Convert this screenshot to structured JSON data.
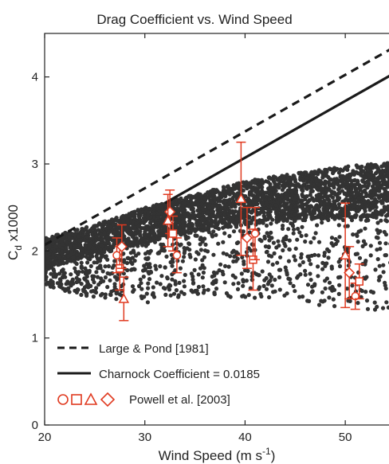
{
  "chart_data": {
    "type": "scatter",
    "title": "Drag Coefficient vs. Wind Speed",
    "xlabel": "Wind Speed (m s",
    "xlabel_sup": "-1",
    "xlabel_end": ")",
    "ylabel_main": "C",
    "ylabel_sub": "d",
    "ylabel_rest": " x1000",
    "xlim": [
      20,
      55
    ],
    "ylim": [
      0,
      4.5
    ],
    "x_ticks": [
      20,
      30,
      40,
      50
    ],
    "y_ticks": [
      0,
      1,
      2,
      3,
      4
    ],
    "grid": false,
    "legend_position": "bottom-left",
    "colors": {
      "scatter": "#333333",
      "observations": "#e03a20",
      "lines": "#1a1a1a"
    },
    "lines": [
      {
        "name": "Large & Pond [1981]",
        "style": "dashed",
        "x": [
          20,
          55
        ],
        "y": [
          2.07,
          4.35
        ]
      },
      {
        "name": "Charnock Coefficient = 0.0185",
        "style": "solid",
        "x": [
          32,
          55
        ],
        "y": [
          2.55,
          4.05
        ]
      }
    ],
    "scatter_cloud": {
      "description_points": "dense cloud of modeled drag coefficients",
      "x": [
        20,
        25,
        30,
        35,
        40,
        45,
        50,
        55
      ],
      "upper": [
        2.15,
        2.3,
        2.5,
        2.65,
        2.8,
        2.9,
        2.97,
        3.03
      ],
      "lower": [
        1.8,
        1.95,
        2.1,
        2.22,
        2.3,
        2.35,
        2.38,
        2.4
      ],
      "scatter_low": [
        1.6,
        1.45,
        1.4,
        1.5,
        1.45,
        1.4,
        1.35,
        1.3
      ]
    },
    "observations": {
      "name": "Powell et al. [2003]",
      "markers": [
        "circle",
        "square",
        "triangle",
        "diamond"
      ],
      "points": [
        {
          "x": 27.2,
          "y": 1.95,
          "marker": "circle",
          "err": 0.2
        },
        {
          "x": 27.5,
          "y": 1.8,
          "marker": "square",
          "err": 0.25
        },
        {
          "x": 27.9,
          "y": 1.45,
          "marker": "triangle",
          "err": 0.25
        },
        {
          "x": 27.7,
          "y": 2.05,
          "marker": "diamond",
          "err": 0.25
        },
        {
          "x": 32.5,
          "y": 2.45,
          "marker": "diamond",
          "err": 0.25
        },
        {
          "x": 32.8,
          "y": 2.2,
          "marker": "square",
          "err": 0.2
        },
        {
          "x": 33.2,
          "y": 1.95,
          "marker": "circle",
          "err": 0.2
        },
        {
          "x": 32.3,
          "y": 2.35,
          "marker": "triangle",
          "err": 0.3
        },
        {
          "x": 39.6,
          "y": 2.6,
          "marker": "triangle",
          "err": 0.65
        },
        {
          "x": 40.2,
          "y": 2.15,
          "marker": "diamond",
          "err": 0.35
        },
        {
          "x": 40.8,
          "y": 1.9,
          "marker": "square",
          "err": 0.35
        },
        {
          "x": 41.0,
          "y": 2.2,
          "marker": "circle",
          "err": 0.3
        },
        {
          "x": 50.0,
          "y": 1.95,
          "marker": "triangle",
          "err": 0.6
        },
        {
          "x": 50.4,
          "y": 1.75,
          "marker": "diamond",
          "err": 0.3
        },
        {
          "x": 51.0,
          "y": 1.48,
          "marker": "circle",
          "err": 0.15
        },
        {
          "x": 51.4,
          "y": 1.65,
          "marker": "square",
          "err": 0.2
        }
      ]
    }
  }
}
